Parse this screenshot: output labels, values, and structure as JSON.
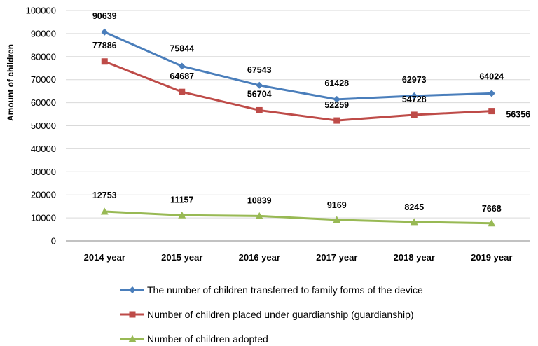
{
  "chart_data": {
    "type": "line",
    "title": "",
    "xlabel": "",
    "ylabel": "Amount of children",
    "categories": [
      "2014 year",
      "2015 year",
      "2016 year",
      "2017 year",
      "2018 year",
      "2019 year"
    ],
    "ylim": [
      0,
      100000
    ],
    "yticks": [
      0,
      10000,
      20000,
      30000,
      40000,
      50000,
      60000,
      70000,
      80000,
      90000,
      100000
    ],
    "grid": true,
    "legend_position": "bottom",
    "series": [
      {
        "name": "The number of children transferred to family forms of the device",
        "color": "#4A7EBB",
        "marker": "diamond",
        "values": [
          90639,
          75844,
          67543,
          61428,
          62973,
          64024
        ]
      },
      {
        "name": "Number of children placed under guardianship (guardianship)",
        "color": "#BE4B48",
        "marker": "square",
        "values": [
          77886,
          64687,
          56704,
          52259,
          54728,
          56356
        ]
      },
      {
        "name": "Number of children adopted",
        "color": "#98B954",
        "marker": "triangle",
        "values": [
          12753,
          11157,
          10839,
          9169,
          8245,
          7668
        ]
      }
    ]
  }
}
